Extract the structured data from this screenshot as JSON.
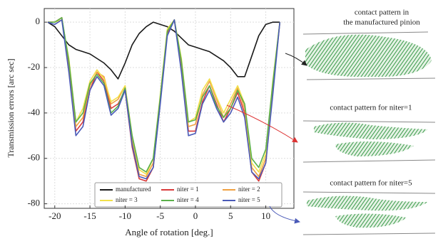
{
  "chart_data": {
    "type": "line",
    "xlabel": "Angle of rotation [deg.]",
    "ylabel": "Transmission errors [arc sec]",
    "x": [
      -21,
      -20,
      -19,
      -18,
      -17,
      -16,
      -15,
      -14,
      -13,
      -12,
      -11,
      -10,
      -9,
      -8,
      -7,
      -6,
      -5,
      -4,
      -3,
      -2,
      -1,
      0,
      1,
      2,
      3,
      4,
      5,
      6,
      7,
      8,
      9,
      10,
      11,
      12
    ],
    "series": [
      {
        "name": "manufactured",
        "color": "#1a1a1a",
        "values": [
          0,
          -2,
          -6,
          -10,
          -12,
          -13,
          -14,
          -16,
          -18,
          -21,
          -25,
          -18,
          -10,
          -5,
          -2,
          0,
          -1,
          -2,
          -4,
          -7,
          -10,
          -11,
          -12,
          -13,
          -15,
          -17,
          -20,
          -24,
          -24,
          -15,
          -6,
          -1,
          0,
          0
        ]
      },
      {
        "name": "niter = 1",
        "color": "#d93a3a",
        "values": [
          0,
          0,
          2,
          -20,
          -48,
          -44,
          -30,
          -22,
          -26,
          -38,
          -36,
          -30,
          -55,
          -69,
          -70,
          -64,
          -35,
          -5,
          1,
          -20,
          -48,
          -48,
          -35,
          -28,
          -36,
          -44,
          -38,
          -31,
          -40,
          -66,
          -70,
          -62,
          -30,
          0
        ]
      },
      {
        "name": "niter = 2",
        "color": "#f0a040",
        "values": [
          0,
          0,
          2,
          -18,
          -46,
          -42,
          -28,
          -22,
          -24,
          -36,
          -34,
          -28,
          -52,
          -67,
          -68,
          -62,
          -33,
          -4,
          1,
          -18,
          -46,
          -45,
          -32,
          -26,
          -34,
          -42,
          -36,
          -29,
          -38,
          -64,
          -68,
          -60,
          -28,
          0
        ]
      },
      {
        "name": "niter = 3",
        "color": "#f2e04a",
        "values": [
          0,
          0,
          1,
          -16,
          -44,
          -38,
          -26,
          -21,
          -25,
          -35,
          -33,
          -28,
          -50,
          -65,
          -67,
          -60,
          -32,
          -3,
          1,
          -16,
          -44,
          -42,
          -30,
          -25,
          -33,
          -40,
          -34,
          -28,
          -36,
          -62,
          -66,
          -58,
          -26,
          0
        ]
      },
      {
        "name": "niter = 4",
        "color": "#5ab04a",
        "values": [
          0,
          0,
          2,
          -17,
          -44,
          -40,
          -27,
          -23,
          -27,
          -40,
          -37,
          -29,
          -50,
          -64,
          -66,
          -60,
          -33,
          -4,
          1,
          -17,
          -44,
          -43,
          -33,
          -28,
          -37,
          -42,
          -38,
          -30,
          -36,
          -60,
          -64,
          -56,
          -27,
          0
        ]
      },
      {
        "name": "niter = 5",
        "color": "#4a5ab8",
        "values": [
          0,
          -1,
          1,
          -22,
          -50,
          -46,
          -30,
          -24,
          -28,
          -41,
          -38,
          -30,
          -54,
          -68,
          -69,
          -64,
          -36,
          -6,
          1,
          -22,
          -50,
          -49,
          -36,
          -30,
          -38,
          -44,
          -40,
          -33,
          -42,
          -66,
          -69,
          -62,
          -32,
          0
        ]
      }
    ],
    "xlim": [
      -21.5,
      14
    ],
    "ylim": [
      -82,
      6
    ],
    "xticks": [
      -20,
      -15,
      -10,
      -5,
      0,
      5,
      10
    ],
    "yticks": [
      0,
      -20,
      -40,
      -60,
      -80
    ],
    "grid": true,
    "annotations": [
      "contact pattern in",
      "the manufactured pinion",
      "contact pattern for niter=1",
      "contact pattern for niter=5"
    ]
  }
}
